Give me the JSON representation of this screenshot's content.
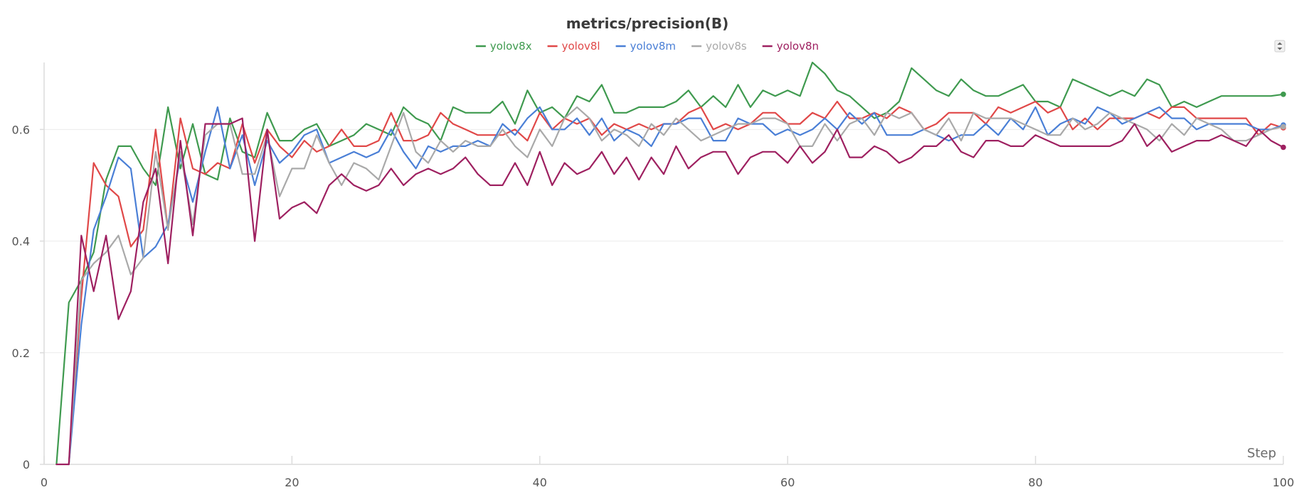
{
  "chart_data": {
    "type": "line",
    "title": "metrics/precision(B)",
    "xlabel": "Step",
    "ylabel": "",
    "xlim": [
      0,
      100
    ],
    "ylim": [
      0,
      0.72
    ],
    "xticks": [
      0,
      20,
      40,
      60,
      80,
      100
    ],
    "yticks": [
      0,
      0.2,
      0.4,
      0.6
    ],
    "xtick_labels": [
      "0",
      "20",
      "40",
      "60",
      "80",
      "100"
    ],
    "ytick_labels": [
      "0",
      "0.2",
      "0.4",
      "0.6"
    ],
    "grid": true,
    "legend_position": "top-center",
    "series": [
      {
        "name": "yolov8x",
        "color": "#3f9a4f",
        "x": [
          1,
          2,
          3,
          4,
          5,
          6,
          7,
          8,
          9,
          10,
          11,
          12,
          13,
          14,
          15,
          16,
          17,
          18,
          19,
          20,
          21,
          22,
          23,
          24,
          25,
          26,
          27,
          28,
          29,
          30,
          31,
          32,
          33,
          34,
          35,
          36,
          37,
          38,
          39,
          40,
          41,
          42,
          43,
          44,
          45,
          46,
          47,
          48,
          49,
          50,
          51,
          52,
          53,
          54,
          55,
          56,
          57,
          58,
          59,
          60,
          61,
          62,
          63,
          64,
          65,
          66,
          67,
          68,
          69,
          70,
          71,
          72,
          73,
          74,
          75,
          76,
          77,
          78,
          79,
          80,
          81,
          82,
          83,
          84,
          85,
          86,
          87,
          88,
          89,
          90,
          91,
          92,
          93,
          94,
          95,
          96,
          97,
          98,
          99,
          100
        ],
        "values": [
          0.0,
          0.29,
          0.33,
          0.38,
          0.51,
          0.57,
          0.57,
          0.53,
          0.5,
          0.64,
          0.53,
          0.61,
          0.52,
          0.51,
          0.62,
          0.56,
          0.55,
          0.63,
          0.58,
          0.58,
          0.6,
          0.61,
          0.57,
          0.58,
          0.59,
          0.61,
          0.6,
          0.59,
          0.64,
          0.62,
          0.61,
          0.58,
          0.64,
          0.63,
          0.63,
          0.63,
          0.65,
          0.61,
          0.67,
          0.63,
          0.64,
          0.62,
          0.66,
          0.65,
          0.68,
          0.63,
          0.63,
          0.64,
          0.64,
          0.64,
          0.65,
          0.67,
          0.64,
          0.66,
          0.64,
          0.68,
          0.64,
          0.67,
          0.66,
          0.67,
          0.66,
          0.72,
          0.7,
          0.67,
          0.66,
          0.64,
          0.62,
          0.63,
          0.65,
          0.71,
          0.69,
          0.67,
          0.66,
          0.69,
          0.67,
          0.66,
          0.66,
          0.67,
          0.68,
          0.65,
          0.65,
          0.64,
          0.69,
          0.68,
          0.67,
          0.66,
          0.67,
          0.66,
          0.69,
          0.68,
          0.64,
          0.65,
          0.64,
          0.65,
          0.66,
          0.66,
          0.66,
          0.66,
          0.66,
          0.663
        ]
      },
      {
        "name": "yolov8l",
        "color": "#e04848",
        "x": [
          2,
          3,
          4,
          5,
          6,
          7,
          8,
          9,
          10,
          11,
          12,
          13,
          14,
          15,
          16,
          17,
          18,
          19,
          20,
          21,
          22,
          23,
          24,
          25,
          26,
          27,
          28,
          29,
          30,
          31,
          32,
          33,
          34,
          35,
          36,
          37,
          38,
          39,
          40,
          41,
          42,
          43,
          44,
          45,
          46,
          47,
          48,
          49,
          50,
          51,
          52,
          53,
          54,
          55,
          56,
          57,
          58,
          59,
          60,
          61,
          62,
          63,
          64,
          65,
          66,
          67,
          68,
          69,
          70,
          71,
          72,
          73,
          74,
          75,
          76,
          77,
          78,
          79,
          80,
          81,
          82,
          83,
          84,
          85,
          86,
          87,
          88,
          89,
          90,
          91,
          92,
          93,
          94,
          95,
          96,
          97,
          98,
          99,
          100
        ],
        "values": [
          0.0,
          0.3,
          0.54,
          0.5,
          0.48,
          0.39,
          0.42,
          0.6,
          0.42,
          0.62,
          0.53,
          0.52,
          0.54,
          0.53,
          0.61,
          0.54,
          0.6,
          0.57,
          0.55,
          0.58,
          0.56,
          0.57,
          0.6,
          0.57,
          0.57,
          0.58,
          0.63,
          0.58,
          0.58,
          0.59,
          0.63,
          0.61,
          0.6,
          0.59,
          0.59,
          0.59,
          0.6,
          0.58,
          0.63,
          0.6,
          0.62,
          0.61,
          0.62,
          0.59,
          0.61,
          0.6,
          0.61,
          0.6,
          0.61,
          0.61,
          0.63,
          0.64,
          0.6,
          0.61,
          0.6,
          0.61,
          0.63,
          0.63,
          0.61,
          0.61,
          0.63,
          0.62,
          0.65,
          0.62,
          0.62,
          0.63,
          0.62,
          0.64,
          0.63,
          0.6,
          0.61,
          0.63,
          0.63,
          0.63,
          0.61,
          0.64,
          0.63,
          0.64,
          0.65,
          0.63,
          0.64,
          0.6,
          0.62,
          0.6,
          0.62,
          0.62,
          0.62,
          0.63,
          0.62,
          0.64,
          0.64,
          0.62,
          0.62,
          0.62,
          0.62,
          0.62,
          0.59,
          0.61,
          0.603
        ]
      },
      {
        "name": "yolov8m",
        "color": "#4a7fd6",
        "x": [
          2,
          3,
          4,
          5,
          6,
          7,
          8,
          9,
          10,
          11,
          12,
          13,
          14,
          15,
          16,
          17,
          18,
          19,
          20,
          21,
          22,
          23,
          24,
          25,
          26,
          27,
          28,
          29,
          30,
          31,
          32,
          33,
          34,
          35,
          36,
          37,
          38,
          39,
          40,
          41,
          42,
          43,
          44,
          45,
          46,
          47,
          48,
          49,
          50,
          51,
          52,
          53,
          54,
          55,
          56,
          57,
          58,
          59,
          60,
          61,
          62,
          63,
          64,
          65,
          66,
          67,
          68,
          69,
          70,
          71,
          72,
          73,
          74,
          75,
          76,
          77,
          78,
          79,
          80,
          81,
          82,
          83,
          84,
          85,
          86,
          87,
          88,
          89,
          90,
          91,
          92,
          93,
          94,
          95,
          96,
          97,
          98,
          99,
          100
        ],
        "values": [
          0.0,
          0.25,
          0.42,
          0.48,
          0.55,
          0.53,
          0.37,
          0.39,
          0.43,
          0.55,
          0.47,
          0.56,
          0.64,
          0.53,
          0.59,
          0.5,
          0.58,
          0.54,
          0.56,
          0.59,
          0.6,
          0.54,
          0.55,
          0.56,
          0.55,
          0.56,
          0.6,
          0.56,
          0.53,
          0.57,
          0.56,
          0.57,
          0.57,
          0.58,
          0.57,
          0.61,
          0.59,
          0.62,
          0.64,
          0.6,
          0.6,
          0.62,
          0.59,
          0.62,
          0.58,
          0.6,
          0.59,
          0.57,
          0.61,
          0.61,
          0.62,
          0.62,
          0.58,
          0.58,
          0.62,
          0.61,
          0.61,
          0.59,
          0.6,
          0.59,
          0.6,
          0.62,
          0.6,
          0.63,
          0.61,
          0.63,
          0.59,
          0.59,
          0.59,
          0.6,
          0.59,
          0.58,
          0.59,
          0.59,
          0.61,
          0.59,
          0.62,
          0.6,
          0.64,
          0.59,
          0.61,
          0.62,
          0.61,
          0.64,
          0.63,
          0.61,
          0.62,
          0.63,
          0.64,
          0.62,
          0.62,
          0.6,
          0.61,
          0.61,
          0.61,
          0.61,
          0.6,
          0.6,
          0.608
        ]
      },
      {
        "name": "yolov8s",
        "color": "#a9a9a9",
        "x": [
          2,
          3,
          4,
          5,
          6,
          7,
          8,
          9,
          10,
          11,
          12,
          13,
          14,
          15,
          16,
          17,
          18,
          19,
          20,
          21,
          22,
          23,
          24,
          25,
          26,
          27,
          28,
          29,
          30,
          31,
          32,
          33,
          34,
          35,
          36,
          37,
          38,
          39,
          40,
          41,
          42,
          43,
          44,
          45,
          46,
          47,
          48,
          49,
          50,
          51,
          52,
          53,
          54,
          55,
          56,
          57,
          58,
          59,
          60,
          61,
          62,
          63,
          64,
          65,
          66,
          67,
          68,
          69,
          70,
          71,
          72,
          73,
          74,
          75,
          76,
          77,
          78,
          79,
          80,
          81,
          82,
          83,
          84,
          85,
          86,
          87,
          88,
          89,
          90,
          91,
          92,
          93,
          94,
          95,
          96,
          97,
          98,
          99,
          100
        ],
        "values": [
          0.0,
          0.33,
          0.36,
          0.38,
          0.41,
          0.34,
          0.37,
          0.56,
          0.42,
          0.56,
          0.43,
          0.59,
          0.61,
          0.61,
          0.52,
          0.52,
          0.59,
          0.48,
          0.53,
          0.53,
          0.59,
          0.54,
          0.5,
          0.54,
          0.53,
          0.51,
          0.57,
          0.63,
          0.56,
          0.54,
          0.58,
          0.56,
          0.58,
          0.57,
          0.57,
          0.6,
          0.57,
          0.55,
          0.6,
          0.57,
          0.62,
          0.64,
          0.62,
          0.58,
          0.6,
          0.59,
          0.57,
          0.61,
          0.59,
          0.62,
          0.6,
          0.58,
          0.59,
          0.6,
          0.61,
          0.61,
          0.62,
          0.62,
          0.61,
          0.57,
          0.57,
          0.61,
          0.58,
          0.61,
          0.62,
          0.59,
          0.63,
          0.62,
          0.63,
          0.6,
          0.59,
          0.62,
          0.58,
          0.63,
          0.62,
          0.62,
          0.62,
          0.61,
          0.6,
          0.59,
          0.59,
          0.62,
          0.6,
          0.61,
          0.63,
          0.62,
          0.61,
          0.6,
          0.58,
          0.61,
          0.59,
          0.62,
          0.61,
          0.6,
          0.58,
          0.58,
          0.59,
          0.6,
          0.605
        ]
      },
      {
        "name": "yolov8n",
        "color": "#9e2060",
        "x": [
          1,
          2,
          3,
          4,
          5,
          6,
          7,
          8,
          9,
          10,
          11,
          12,
          13,
          14,
          15,
          16,
          17,
          18,
          19,
          20,
          21,
          22,
          23,
          24,
          25,
          26,
          27,
          28,
          29,
          30,
          31,
          32,
          33,
          34,
          35,
          36,
          37,
          38,
          39,
          40,
          41,
          42,
          43,
          44,
          45,
          46,
          47,
          48,
          49,
          50,
          51,
          52,
          53,
          54,
          55,
          56,
          57,
          58,
          59,
          60,
          61,
          62,
          63,
          64,
          65,
          66,
          67,
          68,
          69,
          70,
          71,
          72,
          73,
          74,
          75,
          76,
          77,
          78,
          79,
          80,
          81,
          82,
          83,
          84,
          85,
          86,
          87,
          88,
          89,
          90,
          91,
          92,
          93,
          94,
          95,
          96,
          97,
          98,
          99,
          100
        ],
        "values": [
          0.0,
          0.0,
          0.41,
          0.31,
          0.41,
          0.26,
          0.31,
          0.47,
          0.53,
          0.36,
          0.58,
          0.41,
          0.61,
          0.61,
          0.61,
          0.62,
          0.4,
          0.6,
          0.44,
          0.46,
          0.47,
          0.45,
          0.5,
          0.52,
          0.5,
          0.49,
          0.5,
          0.53,
          0.5,
          0.52,
          0.53,
          0.52,
          0.53,
          0.55,
          0.52,
          0.5,
          0.5,
          0.54,
          0.5,
          0.56,
          0.5,
          0.54,
          0.52,
          0.53,
          0.56,
          0.52,
          0.55,
          0.51,
          0.55,
          0.52,
          0.57,
          0.53,
          0.55,
          0.56,
          0.56,
          0.52,
          0.55,
          0.56,
          0.56,
          0.54,
          0.57,
          0.54,
          0.56,
          0.6,
          0.55,
          0.55,
          0.57,
          0.56,
          0.54,
          0.55,
          0.57,
          0.57,
          0.59,
          0.56,
          0.55,
          0.58,
          0.58,
          0.57,
          0.57,
          0.59,
          0.58,
          0.57,
          0.57,
          0.57,
          0.57,
          0.57,
          0.58,
          0.61,
          0.57,
          0.59,
          0.56,
          0.57,
          0.58,
          0.58,
          0.59,
          0.58,
          0.57,
          0.6,
          0.58,
          0.568
        ]
      }
    ]
  },
  "ui": {
    "menu_icon": "expand-collapse-icon"
  }
}
